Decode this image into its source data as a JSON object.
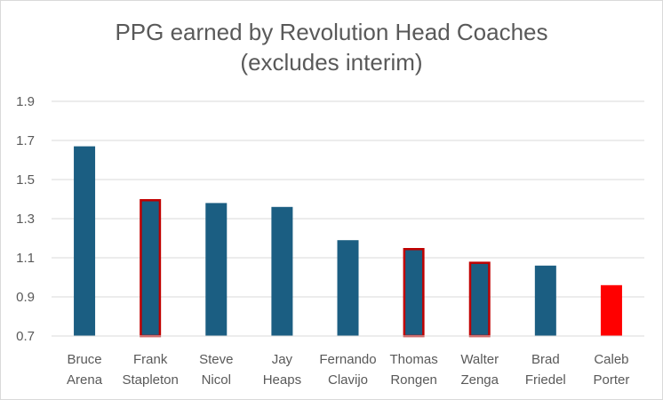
{
  "chart_data": {
    "type": "bar",
    "title": [
      "PPG earned by Revolution Head Coaches",
      "(excludes interim)"
    ],
    "xlabel": "",
    "ylabel": "",
    "categories": [
      [
        "Bruce",
        "Arena"
      ],
      [
        "Frank",
        "Stapleton"
      ],
      [
        "Steve",
        "Nicol"
      ],
      [
        "Jay",
        "Heaps"
      ],
      [
        "Fernando",
        "Clavijo"
      ],
      [
        "Thomas",
        "Rongen"
      ],
      [
        "Walter",
        "Zenga"
      ],
      [
        "Brad",
        "Friedel"
      ],
      [
        "Caleb",
        "Porter"
      ]
    ],
    "values": [
      1.67,
      1.4,
      1.38,
      1.36,
      1.19,
      1.15,
      1.08,
      1.06,
      0.96
    ],
    "bar_style": [
      "plain",
      "outlined",
      "plain",
      "plain",
      "plain",
      "outlined",
      "outlined",
      "plain",
      "highlight"
    ],
    "yticks": [
      "0.7",
      "0.9",
      "1.1",
      "1.3",
      "1.5",
      "1.7",
      "1.9"
    ],
    "ylim": [
      0.7,
      1.9
    ],
    "grid": true,
    "legend": "none",
    "colors": {
      "bar": "#1b5e82",
      "outline": "#c00000",
      "highlight": "#ff0000",
      "grid": "#d9d9d9",
      "text": "#595959"
    }
  }
}
